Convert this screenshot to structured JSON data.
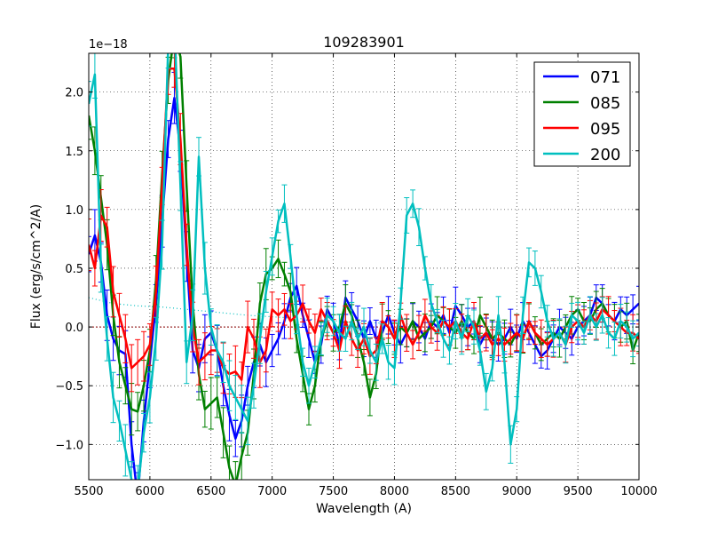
{
  "chart_data": {
    "type": "line",
    "title": "109283901",
    "xlabel": "Wavelength (A)",
    "ylabel": "Flux (erg/s/cm^2/A)",
    "offset_label": "1e−18",
    "xlim": [
      5500,
      10000
    ],
    "ylim": [
      -1.3,
      2.33
    ],
    "xticks": [
      5500,
      6000,
      6500,
      7000,
      7500,
      8000,
      8500,
      9000,
      9500,
      10000
    ],
    "xtick_labels": [
      "5500",
      "6000",
      "6500",
      "7000",
      "7500",
      "8000",
      "8500",
      "9000",
      "9500",
      "10000"
    ],
    "yticks": [
      -1.0,
      -0.5,
      0.0,
      0.5,
      1.0,
      1.5,
      2.0
    ],
    "ytick_labels": [
      "−1.0",
      "−0.5",
      "0.0",
      "0.5",
      "1.0",
      "1.5",
      "2.0"
    ],
    "grid": true,
    "legend_position": "top-right",
    "zero_line_color": "#8b0000",
    "model_curve": {
      "color": "#00bfbf",
      "x": [
        5500,
        5700,
        5900,
        6100,
        6300,
        6500,
        6800,
        7100,
        7400,
        7700,
        8000,
        8500,
        9000
      ],
      "y": [
        0.25,
        0.2,
        0.18,
        0.17,
        0.15,
        0.13,
        0.1,
        0.08,
        0.06,
        0.04,
        0.03,
        0.01,
        0.0
      ]
    },
    "series": [
      {
        "name": "071",
        "color": "#0000ff",
        "x": [
          5500,
          5550,
          5600,
          5650,
          5700,
          5750,
          5800,
          5850,
          5900,
          5950,
          6000,
          6050,
          6100,
          6150,
          6200,
          6250,
          6300,
          6350,
          6400,
          6450,
          6500,
          6550,
          6600,
          6650,
          6700,
          6750,
          6800,
          6850,
          6900,
          6950,
          7000,
          7050,
          7100,
          7150,
          7200,
          7250,
          7300,
          7350,
          7400,
          7450,
          7500,
          7550,
          7600,
          7650,
          7700,
          7750,
          7800,
          7850,
          7900,
          7950,
          8000,
          8050,
          8100,
          8150,
          8200,
          8250,
          8300,
          8350,
          8400,
          8450,
          8500,
          8550,
          8600,
          8650,
          8700,
          8750,
          8800,
          8850,
          8900,
          8950,
          9000,
          9050,
          9100,
          9150,
          9200,
          9250,
          9300,
          9350,
          9400,
          9450,
          9500,
          9550,
          9600,
          9650,
          9700,
          9750,
          9800,
          9850,
          9900,
          9950,
          10000
        ],
        "y": [
          0.62,
          0.78,
          0.55,
          0.1,
          -0.1,
          -0.2,
          -0.23,
          -1.0,
          -1.45,
          -0.8,
          -0.3,
          0.2,
          0.9,
          1.6,
          1.95,
          1.5,
          0.6,
          -0.2,
          -0.35,
          -0.1,
          -0.05,
          -0.2,
          -0.5,
          -0.75,
          -0.95,
          -0.8,
          -0.5,
          -0.3,
          -0.15,
          -0.3,
          -0.2,
          -0.1,
          0.05,
          0.25,
          0.35,
          0.1,
          -0.1,
          -0.3,
          -0.15,
          0.15,
          0.05,
          -0.15,
          0.25,
          0.15,
          0.05,
          -0.1,
          0.05,
          -0.1,
          -0.05,
          0.1,
          -0.05,
          -0.15,
          -0.05,
          0.05,
          0.0,
          -0.1,
          0.05,
          0.0,
          0.1,
          -0.05,
          0.18,
          0.1,
          0.0,
          0.05,
          -0.15,
          -0.05,
          -0.1,
          -0.15,
          -0.1,
          0.0,
          -0.1,
          0.05,
          -0.05,
          -0.15,
          -0.25,
          -0.2,
          -0.1,
          0.0,
          -0.05,
          -0.1,
          0.0,
          0.05,
          0.1,
          0.25,
          0.2,
          0.1,
          0.05,
          0.15,
          0.1,
          0.15,
          0.2
        ]
      },
      {
        "name": "085",
        "color": "#008000",
        "x": [
          5500,
          5550,
          5600,
          5650,
          5700,
          5750,
          5800,
          5850,
          5900,
          5950,
          6000,
          6050,
          6100,
          6150,
          6200,
          6250,
          6300,
          6350,
          6400,
          6450,
          6500,
          6550,
          6600,
          6650,
          6700,
          6750,
          6800,
          6850,
          6900,
          6950,
          7000,
          7050,
          7100,
          7150,
          7200,
          7250,
          7300,
          7350,
          7400,
          7450,
          7500,
          7550,
          7600,
          7650,
          7700,
          7750,
          7800,
          7850,
          7900,
          7950,
          8000,
          8050,
          8100,
          8150,
          8200,
          8250,
          8300,
          8350,
          8400,
          8450,
          8500,
          8550,
          8600,
          8650,
          8700,
          8750,
          8800,
          8850,
          8900,
          8950,
          9000,
          9050,
          9100,
          9150,
          9200,
          9250,
          9300,
          9350,
          9400,
          9450,
          9500,
          9550,
          9600,
          9650,
          9700,
          9750,
          9800,
          9850,
          9900,
          9950,
          10000
        ],
        "y": [
          1.8,
          1.5,
          1.1,
          0.7,
          0.1,
          -0.3,
          -0.5,
          -0.7,
          -0.72,
          -0.5,
          -0.2,
          0.4,
          1.3,
          2.1,
          2.5,
          2.3,
          1.2,
          0.2,
          -0.4,
          -0.7,
          -0.65,
          -0.6,
          -0.9,
          -1.2,
          -1.35,
          -1.1,
          -0.9,
          -0.4,
          0.2,
          0.45,
          0.5,
          0.58,
          0.45,
          0.3,
          -0.1,
          -0.4,
          -0.7,
          -0.5,
          -0.1,
          0.05,
          -0.05,
          0.0,
          0.2,
          0.1,
          -0.1,
          -0.3,
          -0.6,
          -0.4,
          0.05,
          0.0,
          -0.1,
          0.0,
          -0.05,
          0.05,
          -0.1,
          -0.05,
          0.0,
          0.1,
          0.05,
          0.0,
          -0.05,
          0.05,
          -0.05,
          -0.1,
          0.1,
          0.0,
          -0.1,
          -0.05,
          -0.1,
          -0.15,
          -0.05,
          -0.1,
          0.05,
          -0.05,
          -0.15,
          -0.1,
          -0.05,
          -0.1,
          0.0,
          0.1,
          0.15,
          0.05,
          0.05,
          0.15,
          0.2,
          0.1,
          0.05,
          0.0,
          0.05,
          -0.2,
          -0.05
        ]
      },
      {
        "name": "095",
        "color": "#ff0000",
        "x": [
          5500,
          5550,
          5600,
          5650,
          5700,
          5750,
          5800,
          5850,
          5900,
          5950,
          6000,
          6050,
          6100,
          6150,
          6200,
          6250,
          6300,
          6350,
          6400,
          6450,
          6500,
          6550,
          6600,
          6650,
          6700,
          6750,
          6800,
          6850,
          6900,
          6950,
          7000,
          7050,
          7100,
          7150,
          7200,
          7250,
          7300,
          7350,
          7400,
          7450,
          7500,
          7550,
          7600,
          7650,
          7700,
          7750,
          7800,
          7850,
          7900,
          7950,
          8000,
          8050,
          8100,
          8150,
          8200,
          8250,
          8300,
          8350,
          8400,
          8450,
          8500,
          8550,
          8600,
          8650,
          8700,
          8750,
          8800,
          8850,
          8900,
          8950,
          9000,
          9050,
          9100,
          9150,
          9200,
          9250,
          9300,
          9350,
          9400,
          9450,
          9500,
          9550,
          9600,
          9650,
          9700,
          9750,
          9800,
          9850,
          9900,
          9950,
          10000
        ],
        "y": [
          0.7,
          0.5,
          0.95,
          0.85,
          0.3,
          0.1,
          -0.1,
          -0.35,
          -0.3,
          -0.25,
          -0.15,
          0.3,
          1.2,
          2.2,
          2.2,
          1.6,
          0.7,
          0.0,
          -0.3,
          -0.25,
          -0.2,
          -0.2,
          -0.35,
          -0.4,
          -0.38,
          -0.45,
          0.0,
          -0.1,
          -0.3,
          -0.2,
          0.15,
          0.1,
          0.15,
          0.05,
          0.1,
          0.2,
          0.05,
          -0.05,
          0.15,
          0.05,
          -0.05,
          -0.2,
          0.05,
          -0.1,
          -0.2,
          -0.1,
          -0.25,
          -0.2,
          0.05,
          0.0,
          -0.1,
          0.1,
          -0.05,
          -0.15,
          -0.05,
          0.1,
          0.0,
          -0.05,
          0.05,
          0.0,
          0.05,
          -0.05,
          -0.1,
          0.05,
          -0.1,
          -0.05,
          -0.15,
          -0.1,
          -0.15,
          -0.1,
          -0.05,
          -0.1,
          0.05,
          -0.05,
          -0.1,
          -0.15,
          -0.1,
          -0.05,
          -0.15,
          0.0,
          0.05,
          0.0,
          0.1,
          0.05,
          0.15,
          0.1,
          0.05,
          0.0,
          -0.05,
          -0.05,
          -0.1
        ]
      },
      {
        "name": "200",
        "color": "#00bfbf",
        "x": [
          5500,
          5550,
          5600,
          5650,
          5700,
          5750,
          5800,
          5850,
          5900,
          5950,
          6000,
          6050,
          6100,
          6150,
          6200,
          6250,
          6300,
          6350,
          6400,
          6450,
          6500,
          6550,
          6600,
          6650,
          6700,
          6750,
          6800,
          6850,
          6900,
          6950,
          7000,
          7050,
          7100,
          7150,
          7200,
          7250,
          7300,
          7350,
          7400,
          7450,
          7500,
          7550,
          7600,
          7650,
          7700,
          7750,
          7800,
          7850,
          7900,
          7950,
          8000,
          8050,
          8100,
          8150,
          8200,
          8250,
          8300,
          8350,
          8400,
          8450,
          8500,
          8550,
          8600,
          8650,
          8700,
          8750,
          8800,
          8850,
          8900,
          8950,
          9000,
          9050,
          9100,
          9150,
          9200,
          9250,
          9300,
          9350,
          9400,
          9450,
          9500,
          9550,
          9600,
          9650,
          9700,
          9750,
          9800,
          9850,
          9900,
          9950,
          10000
        ],
        "y": [
          1.9,
          2.15,
          0.5,
          -0.1,
          -0.6,
          -0.8,
          -1.05,
          -1.3,
          -1.4,
          -0.9,
          -0.6,
          -0.1,
          0.7,
          2.4,
          2.6,
          1.2,
          -0.3,
          0.1,
          1.45,
          0.5,
          0.0,
          -0.2,
          -0.3,
          -0.5,
          -0.6,
          -0.7,
          -0.8,
          -0.5,
          -0.1,
          0.3,
          0.6,
          0.9,
          1.05,
          0.6,
          0.1,
          -0.3,
          -0.5,
          -0.3,
          -0.1,
          0.1,
          0.05,
          -0.05,
          -0.1,
          0.05,
          -0.1,
          0.0,
          -0.2,
          -0.3,
          -0.1,
          -0.3,
          -0.35,
          0.2,
          0.95,
          1.05,
          0.85,
          0.5,
          0.2,
          0.05,
          -0.1,
          -0.2,
          0.05,
          -0.1,
          0.1,
          0.0,
          -0.2,
          -0.55,
          -0.35,
          0.1,
          -0.3,
          -1.0,
          -0.7,
          0.1,
          0.55,
          0.5,
          0.3,
          0.05,
          -0.1,
          -0.05,
          -0.15,
          0.1,
          0.05,
          -0.05,
          0.1,
          0.0,
          0.1,
          -0.05,
          -0.1,
          0.05,
          0.0,
          -0.1,
          -0.05
        ]
      }
    ]
  }
}
